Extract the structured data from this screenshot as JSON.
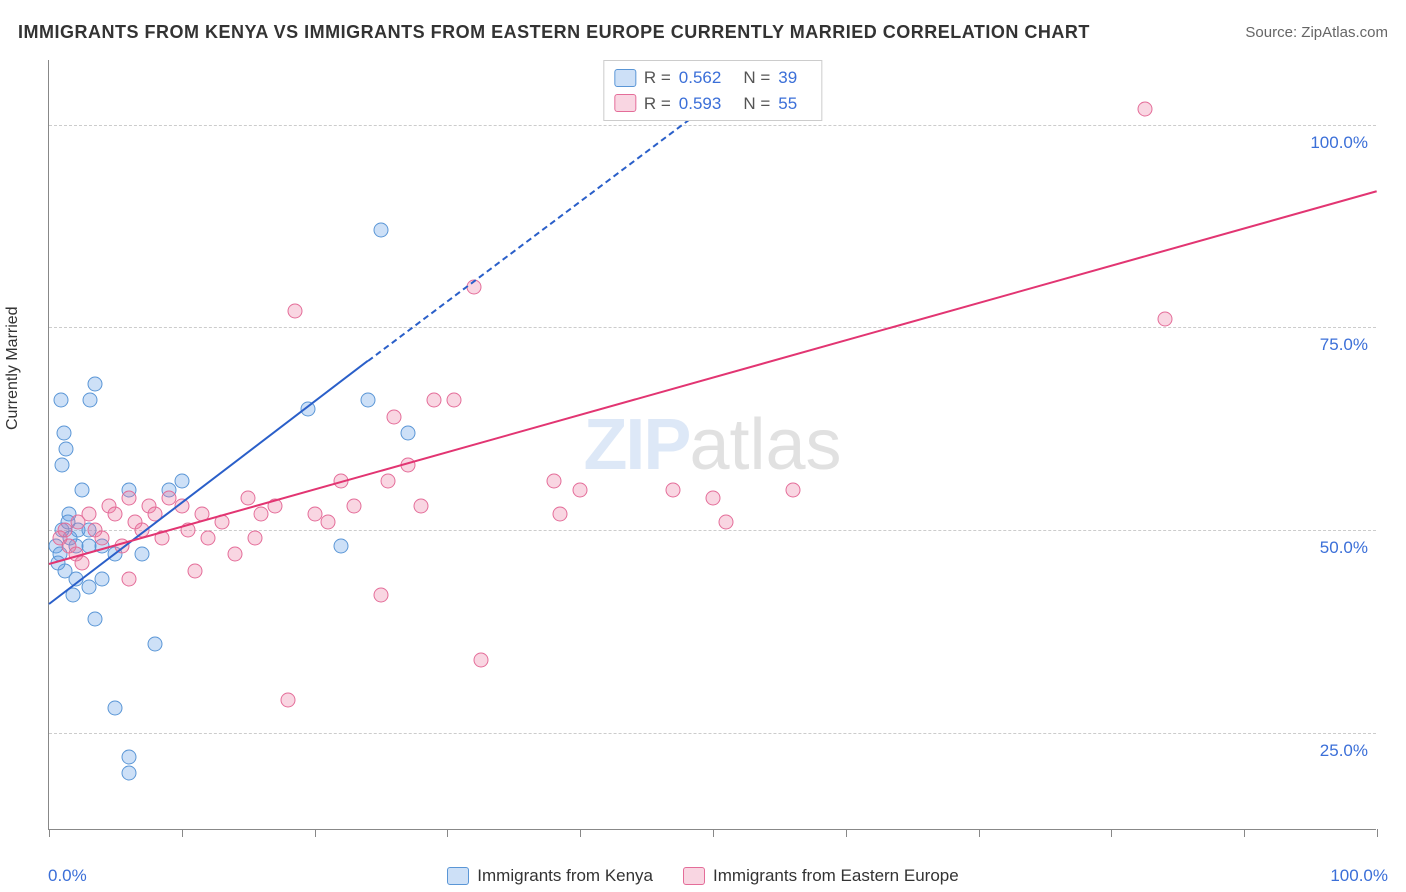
{
  "title": "IMMIGRANTS FROM KENYA VS IMMIGRANTS FROM EASTERN EUROPE CURRENTLY MARRIED CORRELATION CHART",
  "source_prefix": "Source: ",
  "source_label": "ZipAtlas.com",
  "ylabel": "Currently Married",
  "watermark_a": "ZIP",
  "watermark_b": "atlas",
  "chart": {
    "type": "scatter",
    "background_color": "#ffffff",
    "grid_color": "#cccccc",
    "axis_color": "#888888",
    "tick_label_color": "#3b6fd8",
    "tick_label_fontsize": 17,
    "xlim": [
      0,
      100
    ],
    "ylim": [
      13,
      108
    ],
    "x_ticks": [
      0,
      10,
      20,
      30,
      40,
      50,
      60,
      70,
      80,
      90,
      100
    ],
    "x_tick_labels": {
      "0": "0.0%",
      "100": "100.0%"
    },
    "y_gridlines": [
      25,
      50,
      75,
      100
    ],
    "y_tick_labels": [
      "25.0%",
      "50.0%",
      "75.0%",
      "100.0%"
    ],
    "marker_size": 15,
    "marker_opacity": 0.35,
    "series": [
      {
        "name": "Immigrants from Kenya",
        "color_fill": "rgba(100,160,230,0.32)",
        "color_stroke": "#5a96d6",
        "line_color": "#2a5fc9",
        "r_label": "R = ",
        "r_value": "0.562",
        "n_label": "N = ",
        "n_value": "39",
        "trend": {
          "x1": 0,
          "y1": 41,
          "x2": 24,
          "y2": 71,
          "dash_from_x": 24,
          "dash_to_x": 50,
          "dash_to_y": 103
        },
        "points": [
          [
            0.5,
            48
          ],
          [
            0.8,
            47
          ],
          [
            1.0,
            50
          ],
          [
            1.2,
            45
          ],
          [
            1.5,
            52
          ],
          [
            1.3,
            60
          ],
          [
            1.0,
            58
          ],
          [
            2.0,
            48
          ],
          [
            2.2,
            50
          ],
          [
            1.8,
            42
          ],
          [
            2.0,
            44
          ],
          [
            0.9,
            66
          ],
          [
            1.1,
            62
          ],
          [
            3.0,
            50
          ],
          [
            3.0,
            48
          ],
          [
            2.5,
            55
          ],
          [
            3.1,
            66
          ],
          [
            3.5,
            68
          ],
          [
            4.0,
            48
          ],
          [
            5.0,
            47
          ],
          [
            6.0,
            55
          ],
          [
            7.0,
            47
          ],
          [
            8.0,
            36
          ],
          [
            9.0,
            55
          ],
          [
            10.0,
            56
          ],
          [
            19.5,
            65
          ],
          [
            24,
            66
          ],
          [
            25,
            87
          ],
          [
            27,
            62
          ],
          [
            5,
            28
          ],
          [
            6,
            22
          ],
          [
            6,
            20
          ],
          [
            3,
            43
          ],
          [
            3.5,
            39
          ],
          [
            4,
            44
          ],
          [
            1.6,
            49
          ],
          [
            1.4,
            51
          ],
          [
            0.7,
            46
          ],
          [
            22,
            48
          ]
        ]
      },
      {
        "name": "Immigrants from Eastern Europe",
        "color_fill": "rgba(235,120,160,0.30)",
        "color_stroke": "#e46d99",
        "line_color": "#e23572",
        "r_label": "R = ",
        "r_value": "0.593",
        "n_label": "N = ",
        "n_value": "55",
        "trend": {
          "x1": 0,
          "y1": 46,
          "x2": 100,
          "y2": 92
        },
        "points": [
          [
            0.8,
            49
          ],
          [
            1.2,
            50
          ],
          [
            1.5,
            48
          ],
          [
            2.0,
            47
          ],
          [
            2.2,
            51
          ],
          [
            2.5,
            46
          ],
          [
            3.0,
            52
          ],
          [
            3.5,
            50
          ],
          [
            4.0,
            49
          ],
          [
            4.5,
            53
          ],
          [
            5.0,
            52
          ],
          [
            5.5,
            48
          ],
          [
            6.0,
            54
          ],
          [
            6.5,
            51
          ],
          [
            7.0,
            50
          ],
          [
            7.5,
            53
          ],
          [
            8.0,
            52
          ],
          [
            8.5,
            49
          ],
          [
            9.0,
            54
          ],
          [
            10,
            53
          ],
          [
            10.5,
            50
          ],
          [
            11,
            45
          ],
          [
            11.5,
            52
          ],
          [
            12,
            49
          ],
          [
            13,
            51
          ],
          [
            14,
            47
          ],
          [
            15,
            54
          ],
          [
            15.5,
            49
          ],
          [
            16,
            52
          ],
          [
            17,
            53
          ],
          [
            18,
            29
          ],
          [
            18.5,
            77
          ],
          [
            20,
            52
          ],
          [
            21,
            51
          ],
          [
            22,
            56
          ],
          [
            23,
            53
          ],
          [
            25,
            42
          ],
          [
            25.5,
            56
          ],
          [
            26,
            64
          ],
          [
            27,
            58
          ],
          [
            28,
            53
          ],
          [
            29,
            66
          ],
          [
            30.5,
            66
          ],
          [
            32,
            80
          ],
          [
            32.5,
            34
          ],
          [
            38,
            56
          ],
          [
            38.5,
            52
          ],
          [
            40,
            55
          ],
          [
            47,
            55
          ],
          [
            50,
            54
          ],
          [
            51,
            51
          ],
          [
            56,
            55
          ],
          [
            82.5,
            102
          ],
          [
            84,
            76
          ],
          [
            6,
            44
          ]
        ]
      }
    ]
  }
}
